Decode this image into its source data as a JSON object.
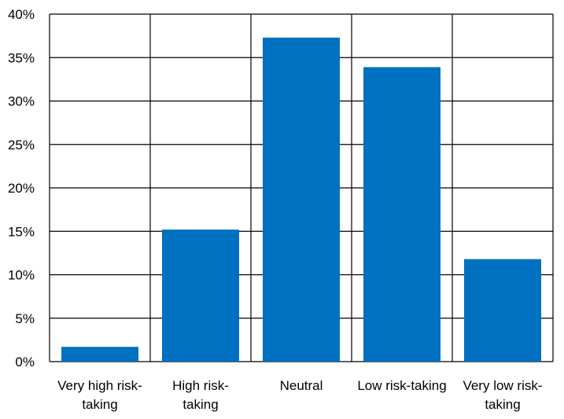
{
  "chart_data": {
    "type": "bar",
    "title": "",
    "xlabel": "",
    "ylabel": "",
    "categories": [
      "Very high risk-taking",
      "High risk-taking",
      "Neutral",
      "Low risk-taking",
      "Very low risk-taking"
    ],
    "category_label_lines": [
      [
        "Very high risk-",
        "taking"
      ],
      [
        "High risk-",
        "taking"
      ],
      [
        "Neutral"
      ],
      [
        "Low risk-taking"
      ],
      [
        "Very low risk-",
        "taking"
      ]
    ],
    "values": [
      1.7,
      15.2,
      37.3,
      33.9,
      11.8
    ],
    "ylim": [
      0,
      40
    ],
    "yticks": [
      0,
      5,
      10,
      15,
      20,
      25,
      30,
      35,
      40
    ],
    "ytick_labels": [
      "0%",
      "5%",
      "10%",
      "15%",
      "20%",
      "25%",
      "30%",
      "35%",
      "40%"
    ],
    "grid": "horizontal and vertical category dividers",
    "bar_color": "#0070C0",
    "grid_color": "#000000"
  }
}
